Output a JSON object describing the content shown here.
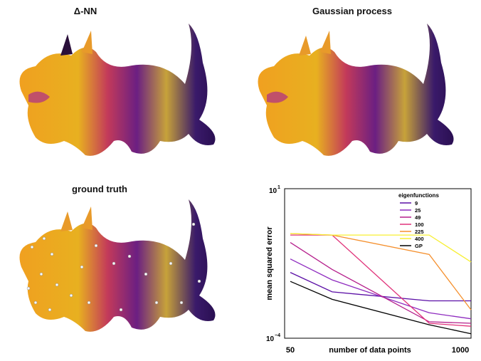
{
  "panels": {
    "top_left": {
      "title": "Δ-NN"
    },
    "top_right": {
      "title": "Gaussian process"
    },
    "bottom_left": {
      "title": "ground truth"
    }
  },
  "chart_data": {
    "type": "line",
    "title": "",
    "xlabel": "number of data points",
    "ylabel": "mean squared error",
    "x_ticks": [
      "50",
      "1000"
    ],
    "y_scale": "log",
    "y_ticks": [
      {
        "base": "10",
        "exp": "1",
        "value": 10
      },
      {
        "base": "10",
        "exp": "−4",
        "value": 0.0001
      }
    ],
    "xlim": [
      50,
      1000
    ],
    "ylim_exp": [
      -4,
      1
    ],
    "legend": {
      "title": "eigenfunctions",
      "position": "top-right"
    },
    "x": [
      50,
      100,
      500,
      1000
    ],
    "series": [
      {
        "name": "9",
        "color": "#5b0fa6",
        "log10_values": [
          -1.8,
          -2.45,
          -2.75,
          -2.75
        ]
      },
      {
        "name": "25",
        "color": "#8e2bbf",
        "log10_values": [
          -1.35,
          -2.05,
          -3.15,
          -3.35
        ]
      },
      {
        "name": "49",
        "color": "#b51f8c",
        "log10_values": [
          -0.8,
          -1.7,
          -3.45,
          -3.5
        ]
      },
      {
        "name": "100",
        "color": "#e0337a",
        "log10_values": [
          -0.55,
          -0.55,
          -3.5,
          -3.6
        ]
      },
      {
        "name": "225",
        "color": "#f5902e",
        "log10_values": [
          -0.5,
          -0.55,
          -1.2,
          -3.05
        ]
      },
      {
        "name": "400",
        "color": "#f7ef33",
        "log10_values": [
          -0.5,
          -0.55,
          -0.55,
          -1.45
        ]
      },
      {
        "name": "GP",
        "color": "#000000",
        "log10_values": [
          -2.1,
          -2.7,
          -3.55,
          -3.85
        ]
      }
    ]
  }
}
